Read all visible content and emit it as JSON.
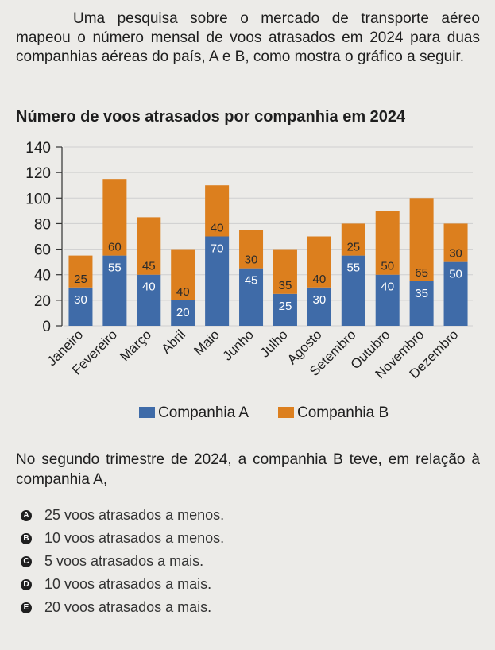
{
  "intro": "Uma pesquisa sobre o mercado de transporte aéreo mapeou o número mensal de voos atrasados em 2024 para duas companhias aéreas do país, A e B, como mostra o gráfico a seguir.",
  "question": "No segundo trimestre de 2024, a companhia B teve, em relação à companhia A,",
  "options": [
    {
      "letter": "A",
      "text": "25 voos atrasados a menos."
    },
    {
      "letter": "B",
      "text": "10 voos atrasados a menos."
    },
    {
      "letter": "C",
      "text": "5 voos atrasados a mais."
    },
    {
      "letter": "D",
      "text": "10 voos atrasados a mais."
    },
    {
      "letter": "E",
      "text": "20 voos atrasados a mais."
    }
  ],
  "chart_data": {
    "type": "bar",
    "stacked": true,
    "title": "Número de voos atrasados por companhia em 2024",
    "categories": [
      "Janeiro",
      "Fevereiro",
      "Março",
      "Abril",
      "Maio",
      "Junho",
      "Julho",
      "Agosto",
      "Setembro",
      "Outubro",
      "Novembro",
      "Dezembro"
    ],
    "series": [
      {
        "name": "Companhia A",
        "color": "#3f6ba8",
        "values": [
          30,
          55,
          40,
          20,
          70,
          45,
          25,
          30,
          55,
          40,
          35,
          50
        ]
      },
      {
        "name": "Companhia B",
        "color": "#dc7f1e",
        "values": [
          25,
          60,
          45,
          40,
          40,
          30,
          35,
          40,
          25,
          50,
          65,
          30
        ]
      }
    ],
    "ylim": [
      0,
      140
    ],
    "yticks": [
      0,
      20,
      40,
      60,
      80,
      100,
      120,
      140
    ],
    "grid": true,
    "legend": "bottom"
  }
}
